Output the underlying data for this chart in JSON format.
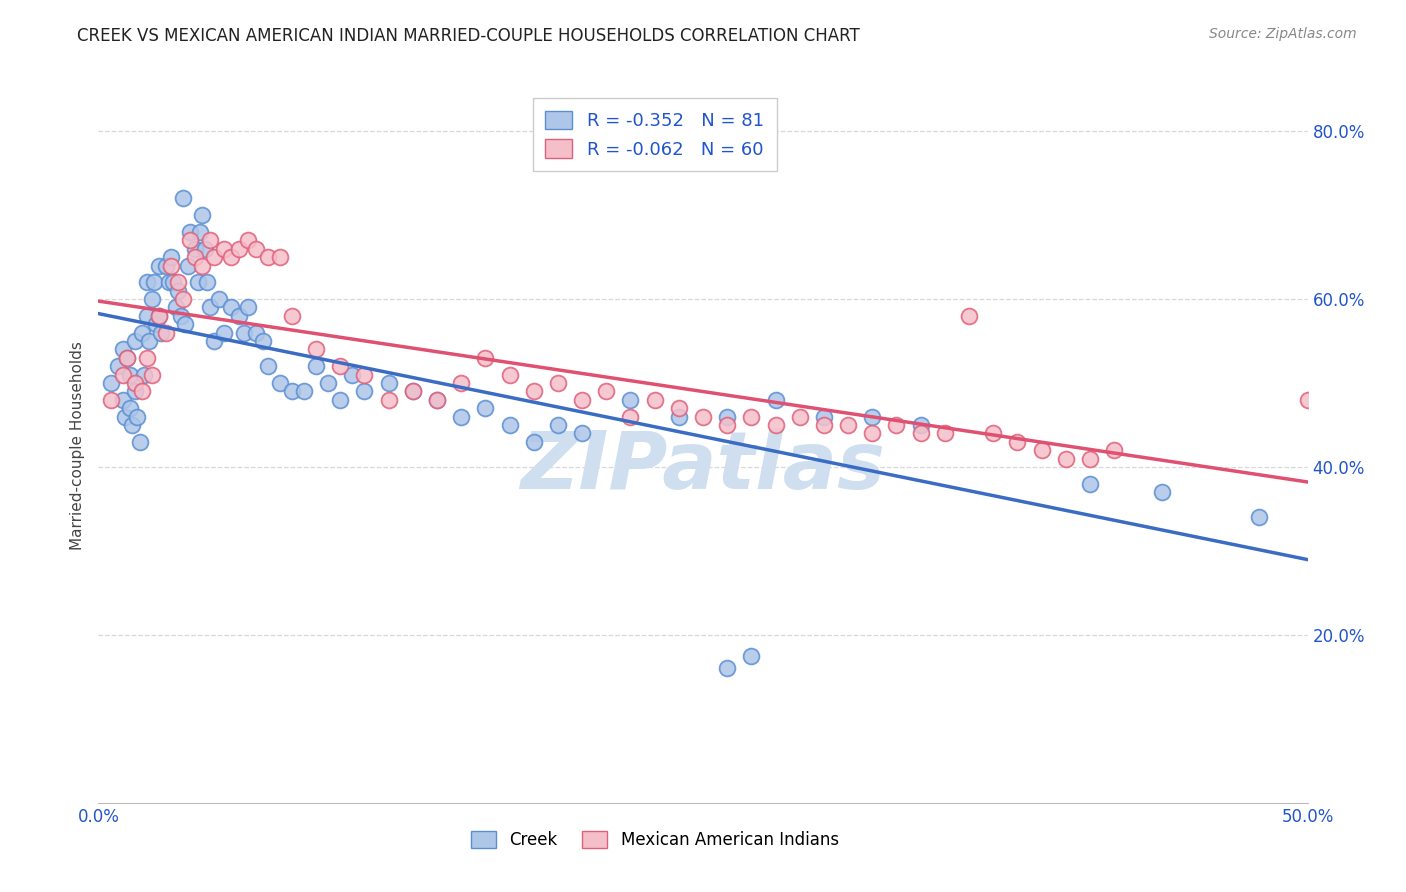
{
  "title": "CREEK VS MEXICAN AMERICAN INDIAN MARRIED-COUPLE HOUSEHOLDS CORRELATION CHART",
  "source": "Source: ZipAtlas.com",
  "ylabel": "Married-couple Households",
  "creek_R": -0.352,
  "creek_N": 81,
  "mexican_R": -0.062,
  "mexican_N": 60,
  "xlim": [
    0.0,
    0.5
  ],
  "ylim": [
    0.0,
    0.85
  ],
  "y_ticks_right": [
    0.2,
    0.4,
    0.6,
    0.8
  ],
  "y_tick_labels_right": [
    "20.0%",
    "40.0%",
    "60.0%",
    "80.0%"
  ],
  "background_color": "#ffffff",
  "grid_color": "#d8d8d8",
  "creek_color": "#aec6e8",
  "creek_edge_color": "#5b8fd4",
  "mexican_color": "#f5bfca",
  "mexican_edge_color": "#e0607a",
  "creek_line_color": "#3b6cc4",
  "mexican_line_color": "#e05070",
  "watermark": "ZIPatlas",
  "watermark_color": "#d0dff0",
  "legend_text_color": "#2255cc",
  "creek_x": [
    0.005,
    0.008,
    0.01,
    0.01,
    0.011,
    0.012,
    0.013,
    0.013,
    0.014,
    0.015,
    0.015,
    0.016,
    0.017,
    0.018,
    0.019,
    0.02,
    0.02,
    0.021,
    0.022,
    0.023,
    0.024,
    0.025,
    0.025,
    0.026,
    0.028,
    0.029,
    0.03,
    0.031,
    0.032,
    0.033,
    0.034,
    0.035,
    0.036,
    0.037,
    0.038,
    0.04,
    0.041,
    0.042,
    0.043,
    0.044,
    0.045,
    0.046,
    0.048,
    0.05,
    0.052,
    0.055,
    0.058,
    0.06,
    0.062,
    0.065,
    0.068,
    0.07,
    0.075,
    0.08,
    0.085,
    0.09,
    0.095,
    0.1,
    0.105,
    0.11,
    0.12,
    0.13,
    0.14,
    0.15,
    0.16,
    0.17,
    0.18,
    0.19,
    0.2,
    0.22,
    0.24,
    0.26,
    0.28,
    0.3,
    0.32,
    0.34,
    0.26,
    0.27,
    0.41,
    0.44,
    0.48
  ],
  "creek_y": [
    0.5,
    0.52,
    0.54,
    0.48,
    0.46,
    0.53,
    0.51,
    0.47,
    0.45,
    0.55,
    0.49,
    0.46,
    0.43,
    0.56,
    0.51,
    0.62,
    0.58,
    0.55,
    0.6,
    0.62,
    0.57,
    0.64,
    0.58,
    0.56,
    0.64,
    0.62,
    0.65,
    0.62,
    0.59,
    0.61,
    0.58,
    0.72,
    0.57,
    0.64,
    0.68,
    0.66,
    0.62,
    0.68,
    0.7,
    0.66,
    0.62,
    0.59,
    0.55,
    0.6,
    0.56,
    0.59,
    0.58,
    0.56,
    0.59,
    0.56,
    0.55,
    0.52,
    0.5,
    0.49,
    0.49,
    0.52,
    0.5,
    0.48,
    0.51,
    0.49,
    0.5,
    0.49,
    0.48,
    0.46,
    0.47,
    0.45,
    0.43,
    0.45,
    0.44,
    0.48,
    0.46,
    0.46,
    0.48,
    0.46,
    0.46,
    0.45,
    0.16,
    0.175,
    0.38,
    0.37,
    0.34
  ],
  "mexican_x": [
    0.005,
    0.01,
    0.012,
    0.015,
    0.018,
    0.02,
    0.022,
    0.025,
    0.028,
    0.03,
    0.033,
    0.035,
    0.038,
    0.04,
    0.043,
    0.046,
    0.048,
    0.052,
    0.055,
    0.058,
    0.062,
    0.065,
    0.07,
    0.075,
    0.08,
    0.09,
    0.1,
    0.11,
    0.12,
    0.13,
    0.14,
    0.15,
    0.16,
    0.17,
    0.18,
    0.19,
    0.2,
    0.21,
    0.22,
    0.23,
    0.24,
    0.25,
    0.26,
    0.27,
    0.28,
    0.29,
    0.3,
    0.31,
    0.32,
    0.33,
    0.34,
    0.35,
    0.36,
    0.37,
    0.38,
    0.39,
    0.4,
    0.41,
    0.42,
    0.5
  ],
  "mexican_y": [
    0.48,
    0.51,
    0.53,
    0.5,
    0.49,
    0.53,
    0.51,
    0.58,
    0.56,
    0.64,
    0.62,
    0.6,
    0.67,
    0.65,
    0.64,
    0.67,
    0.65,
    0.66,
    0.65,
    0.66,
    0.67,
    0.66,
    0.65,
    0.65,
    0.58,
    0.54,
    0.52,
    0.51,
    0.48,
    0.49,
    0.48,
    0.5,
    0.53,
    0.51,
    0.49,
    0.5,
    0.48,
    0.49,
    0.46,
    0.48,
    0.47,
    0.46,
    0.45,
    0.46,
    0.45,
    0.46,
    0.45,
    0.45,
    0.44,
    0.45,
    0.44,
    0.44,
    0.58,
    0.44,
    0.43,
    0.42,
    0.41,
    0.41,
    0.42,
    0.48
  ]
}
